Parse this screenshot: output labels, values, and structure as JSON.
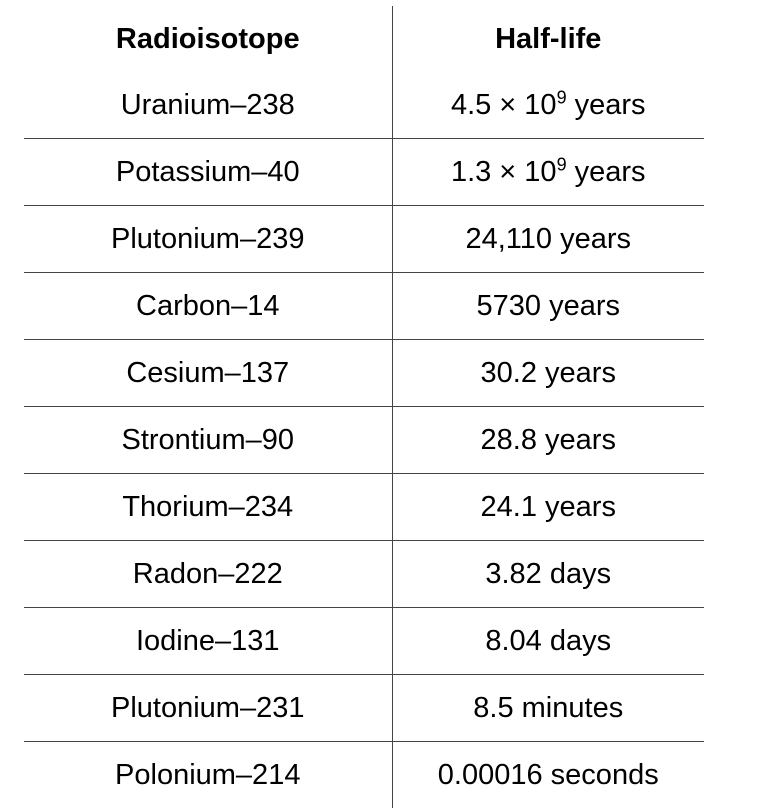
{
  "table": {
    "headers": {
      "isotope": "Radioisotope",
      "half_life": "Half-life"
    },
    "rows": [
      {
        "isotope": "Uranium–238",
        "half_life": "4.5 × 10",
        "exponent": "9",
        "unit": " years"
      },
      {
        "isotope": "Potassium–40",
        "half_life": "1.3 × 10",
        "exponent": "9",
        "unit": " years"
      },
      {
        "isotope": "Plutonium–239",
        "half_life": "24,110 years"
      },
      {
        "isotope": "Carbon–14",
        "half_life": "5730 years"
      },
      {
        "isotope": "Cesium–137",
        "half_life": "30.2 years"
      },
      {
        "isotope": "Strontium–90",
        "half_life": "28.8 years"
      },
      {
        "isotope": "Thorium–234",
        "half_life": "24.1 years"
      },
      {
        "isotope": "Radon–222",
        "half_life": "3.82 days"
      },
      {
        "isotope": "Iodine–131",
        "half_life": "8.04 days"
      },
      {
        "isotope": "Plutonium–231",
        "half_life": "8.5 minutes"
      },
      {
        "isotope": "Polonium–214",
        "half_life": "0.00016 seconds"
      }
    ]
  }
}
